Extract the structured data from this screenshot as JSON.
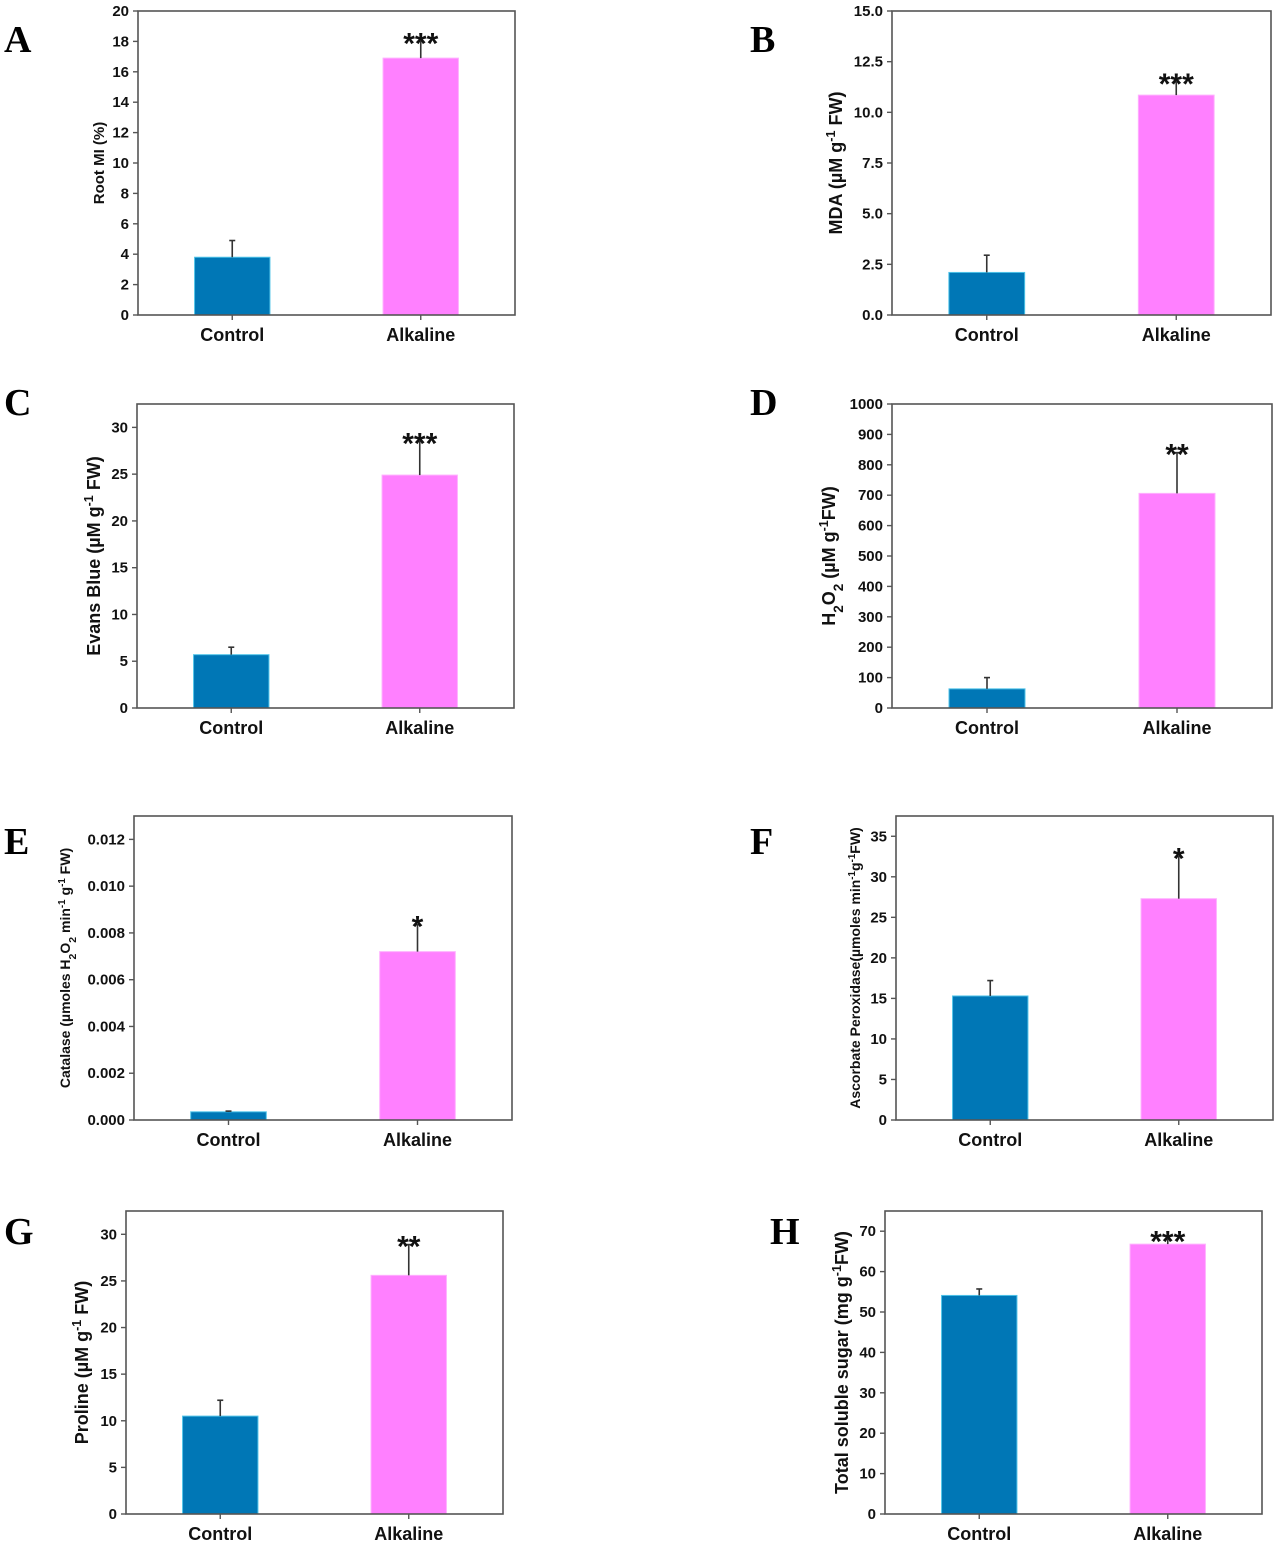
{
  "colors": {
    "control": "#0077b6",
    "alkaline": "#ff80ff",
    "control_edge": "#4fc3e8",
    "alkaline_edge": "#ffb0ff"
  },
  "chart_data": [
    {
      "id": "A",
      "type": "bar",
      "panel_label": "A",
      "categories": [
        "Control",
        "Alkaline"
      ],
      "values": [
        3.8,
        16.9
      ],
      "error_upper": [
        4.9,
        18.0
      ],
      "significance": [
        "",
        "***"
      ],
      "ylabel": "Root MI (%)",
      "ylabel_parts": [
        [
          "Root MI (%)",
          ""
        ]
      ],
      "ylim": [
        0,
        20
      ],
      "yticks": [
        0,
        2,
        4,
        6,
        8,
        10,
        12,
        14,
        16,
        18,
        20
      ],
      "tick_decimals": 0
    },
    {
      "id": "B",
      "type": "bar",
      "panel_label": "B",
      "categories": [
        "Control",
        "Alkaline"
      ],
      "values": [
        2.1,
        10.85
      ],
      "error_upper": [
        2.95,
        11.5
      ],
      "significance": [
        "",
        "***"
      ],
      "ylabel": "MDA (µM g-1 FW)",
      "ylabel_parts": [
        [
          "MDA (µM g",
          ""
        ],
        [
          "-1",
          "sup"
        ],
        [
          " FW)",
          ""
        ]
      ],
      "ylim": [
        0,
        15
      ],
      "yticks": [
        0,
        2.5,
        5,
        7.5,
        10,
        12.5,
        15
      ],
      "tick_decimals": 1
    },
    {
      "id": "C",
      "type": "bar",
      "panel_label": "C",
      "categories": [
        "Control",
        "Alkaline"
      ],
      "values": [
        5.7,
        24.9
      ],
      "error_upper": [
        6.5,
        28.5
      ],
      "significance": [
        "",
        "***"
      ],
      "ylabel": "Evans Blue (µM g-1 FW)",
      "ylabel_parts": [
        [
          "Evans Blue (µM g",
          ""
        ],
        [
          "-1",
          "sup"
        ],
        [
          " FW)",
          ""
        ]
      ],
      "ylim": [
        0,
        32.5
      ],
      "yticks": [
        0,
        5,
        10,
        15,
        20,
        25,
        30
      ],
      "tick_decimals": 0
    },
    {
      "id": "D",
      "type": "bar",
      "panel_label": "D",
      "categories": [
        "Control",
        "Alkaline"
      ],
      "values": [
        63,
        706
      ],
      "error_upper": [
        100,
        840
      ],
      "significance": [
        "",
        "**"
      ],
      "ylabel": "H2O2 (µM g-1FW)",
      "ylabel_parts": [
        [
          "H",
          ""
        ],
        [
          "2",
          "sub"
        ],
        [
          "O",
          ""
        ],
        [
          "2",
          "sub"
        ],
        [
          " (µM g",
          ""
        ],
        [
          "-1",
          "sup"
        ],
        [
          "FW)",
          ""
        ]
      ],
      "ylim": [
        0,
        1000
      ],
      "yticks": [
        0,
        100,
        200,
        300,
        400,
        500,
        600,
        700,
        800,
        900,
        1000
      ],
      "tick_decimals": 0
    },
    {
      "id": "E",
      "type": "bar",
      "panel_label": "E",
      "categories": [
        "Control",
        "Alkaline"
      ],
      "values": [
        0.00035,
        0.0072
      ],
      "error_upper": [
        0.00038,
        0.00835
      ],
      "significance": [
        "",
        "*"
      ],
      "ylabel": "Catalase (µmoles H2O2 min-1 g-1 FW)",
      "ylabel_parts": [
        [
          "Catalase (µmoles H",
          ""
        ],
        [
          "2",
          "sub"
        ],
        [
          "O",
          ""
        ],
        [
          "2",
          "sub"
        ],
        [
          " min",
          ""
        ],
        [
          "-1",
          "sup"
        ],
        [
          " g",
          ""
        ],
        [
          "-1",
          "sup"
        ],
        [
          " FW)",
          ""
        ]
      ],
      "ylim": [
        0,
        0.013
      ],
      "yticks": [
        0,
        0.002,
        0.004,
        0.006,
        0.008,
        0.01,
        0.012
      ],
      "tick_decimals": 3
    },
    {
      "id": "F",
      "type": "bar",
      "panel_label": "F",
      "categories": [
        "Control",
        "Alkaline"
      ],
      "values": [
        15.3,
        27.3
      ],
      "error_upper": [
        17.2,
        32.5
      ],
      "significance": [
        "",
        "*"
      ],
      "ylabel": "Ascorbate Peroxidase(µmoles min-1g-1FW)",
      "ylabel_parts": [
        [
          "Ascorbate Peroxidase(µmoles min",
          ""
        ],
        [
          "-1",
          "sup"
        ],
        [
          "g",
          ""
        ],
        [
          "-1",
          "sup"
        ],
        [
          "FW)",
          ""
        ]
      ],
      "ylim": [
        0,
        37.5
      ],
      "yticks": [
        0,
        5,
        10,
        15,
        20,
        25,
        30,
        35
      ],
      "tick_decimals": 0
    },
    {
      "id": "G",
      "type": "bar",
      "panel_label": "G",
      "categories": [
        "Control",
        "Alkaline"
      ],
      "values": [
        10.5,
        25.6
      ],
      "error_upper": [
        12.2,
        28.9
      ],
      "significance": [
        "",
        "**"
      ],
      "ylabel": "Proline (µM g-1 FW)",
      "ylabel_parts": [
        [
          "Proline (µM g",
          ""
        ],
        [
          "-1",
          "sup"
        ],
        [
          " FW)",
          ""
        ]
      ],
      "ylim": [
        0,
        32.5
      ],
      "yticks": [
        0,
        5,
        10,
        15,
        20,
        25,
        30
      ],
      "tick_decimals": 0
    },
    {
      "id": "H",
      "type": "bar",
      "panel_label": "H",
      "categories": [
        "Control",
        "Alkaline"
      ],
      "values": [
        54.1,
        66.8
      ],
      "error_upper": [
        55.7,
        68.0
      ],
      "significance": [
        "",
        "***"
      ],
      "ylabel": "Total soluble sugar (mg g-1FW)",
      "ylabel_parts": [
        [
          "Total soluble sugar (mg g",
          ""
        ],
        [
          "-1",
          "sup"
        ],
        [
          "FW)",
          ""
        ]
      ],
      "ylim": [
        0,
        75
      ],
      "yticks": [
        0,
        10,
        20,
        30,
        40,
        50,
        60,
        70
      ],
      "tick_decimals": 0
    }
  ]
}
